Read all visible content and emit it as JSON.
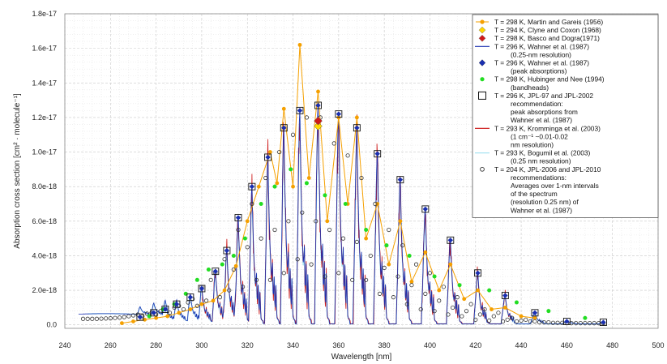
{
  "chart_data": {
    "type": "line",
    "xlabel": "Wavelength [nm]",
    "ylabel": "Absorption cross section [cm² · molecule⁻¹]",
    "xlim": [
      240,
      500
    ],
    "ylim": [
      -2e-19,
      1.8e-17
    ],
    "x_ticks": [
      "240",
      "260",
      "280",
      "300",
      "320",
      "340",
      "360",
      "380",
      "400",
      "420",
      "440",
      "460",
      "480",
      "500"
    ],
    "y_ticks": [
      "0.0",
      "2.0e-18",
      "4.0e-18",
      "6.0e-18",
      "8.0e-18",
      "1.0e-17",
      "1.2e-17",
      "1.4e-17",
      "1.6e-17",
      "1.8e-17"
    ],
    "grid": true,
    "legend_position": "top-right",
    "legend": [
      {
        "lines": [
          "T = 298 K, Martin and Gareis (1956)"
        ],
        "color": "#f5a000",
        "marker": "circle-line"
      },
      {
        "lines": [
          "T = 294 K, Clyne and Coxon (1968)"
        ],
        "color": "#ffd700",
        "marker": "diamond"
      },
      {
        "lines": [
          "T = 298 K, Basco and Dogra(1971)"
        ],
        "color": "#d01818",
        "marker": "diamond"
      },
      {
        "lines": [
          "T = 296 K, Wahner et al. (1987)",
          "(0.25-nm resolution)"
        ],
        "color": "#1a2fb0",
        "marker": "line"
      },
      {
        "lines": [
          "T = 296 K, Wahner et al. (1987)",
          "(peak absorptions)"
        ],
        "color": "#1a2fb0",
        "marker": "diamond"
      },
      {
        "lines": [
          "T = 298 K, Hubinger and Nee (1994)",
          "(bandheads)"
        ],
        "color": "#22dd22",
        "marker": "circle"
      },
      {
        "lines": [
          "T = 296 K, JPL-97 and JPL-2002",
          "recommendation:",
          "peak absorptions from",
          "Wahner et al. (1987)"
        ],
        "color": "#111111",
        "marker": "square"
      },
      {
        "lines": [
          "T = 293 K, Kromminga et al. (2003)",
          "(1 cm⁻¹ ~0.01-0.02",
          "nm resolution)"
        ],
        "color": "#cc1111",
        "marker": "line"
      },
      {
        "lines": [
          "T = 293 K, Bogumil et al. (2003)",
          "(0.25 nm resolution)"
        ],
        "color": "#a8e4f2",
        "marker": "line"
      },
      {
        "lines": [
          "T = 204 K, JPL-2006 and JPL-2010",
          "recommendations:",
          "Averages over 1-nm intervals",
          "of the spectrum",
          "(resolution 0.25 nm) of",
          "Wahner et al. (1987)"
        ],
        "color": "#333333",
        "marker": "open-circle"
      }
    ],
    "peak_wavelengths": [
      273,
      279,
      284,
      289,
      295,
      300,
      306,
      311,
      316,
      322,
      329,
      336,
      343,
      351,
      360,
      368,
      377,
      387,
      398,
      409,
      421,
      433,
      446,
      460,
      476
    ],
    "peak_values": [
      4.5e-19,
      7e-19,
      9e-19,
      1.2e-18,
      1.6e-18,
      2.1e-18,
      3.1e-18,
      4.3e-18,
      6.2e-18,
      8e-18,
      9.7e-18,
      1.14e-17,
      1.24e-17,
      1.27e-17,
      1.22e-17,
      1.14e-17,
      9.9e-18,
      8.4e-18,
      6.7e-18,
      4.9e-18,
      3e-18,
      1.7e-18,
      7e-19,
      2e-19,
      1.5e-19
    ],
    "series": [
      {
        "name": "Martin and Gareis (1956)",
        "x": [
          265,
          270,
          275,
          280,
          285,
          290,
          295,
          300,
          305,
          310,
          315,
          320,
          325,
          330,
          333,
          336,
          340,
          343,
          347,
          351,
          355,
          360,
          364,
          368,
          372,
          377,
          382,
          387,
          392,
          398,
          404,
          409,
          415,
          421,
          427,
          433,
          440,
          446
        ],
        "y": [
          1e-19,
          2e-19,
          3e-19,
          4e-19,
          5e-19,
          7e-19,
          9e-19,
          1.2e-18,
          1.4e-18,
          2e-18,
          3.4e-18,
          6e-18,
          8e-18,
          1e-17,
          8.2e-18,
          1.25e-17,
          8e-18,
          1.62e-17,
          8.5e-18,
          1.35e-17,
          6e-18,
          1.2e-17,
          7e-18,
          1.2e-17,
          5e-18,
          7e-18,
          3.5e-18,
          6e-18,
          2.5e-18,
          4.2e-18,
          2e-18,
          3.5e-18,
          1.5e-18,
          2e-18,
          9e-19,
          1e-18,
          5e-19,
          4e-19
        ]
      },
      {
        "name": "Clyne and Coxon (1968)",
        "x": [
          351
        ],
        "y": [
          1.15e-17
        ]
      },
      {
        "name": "Basco and Dogra(1971)",
        "x": [
          351
        ],
        "y": [
          1.18e-17
        ]
      },
      {
        "name": "Hubinger and Nee (1994)",
        "x": [
          277,
          283,
          288,
          293,
          298,
          303,
          309,
          314,
          319,
          326,
          332,
          339,
          346,
          354,
          363,
          372,
          381,
          391,
          402,
          413,
          426,
          438,
          452,
          468
        ],
        "y": [
          5e-19,
          9e-19,
          1.2e-18,
          1.8e-18,
          2.6e-18,
          3.2e-18,
          3.5e-18,
          4e-18,
          5e-18,
          7e-18,
          8e-18,
          9e-18,
          8.2e-18,
          7.5e-18,
          7e-18,
          5.5e-18,
          4.6e-18,
          4e-18,
          2.8e-18,
          2.3e-18,
          2e-18,
          1.3e-18,
          8e-19,
          4e-19
        ]
      },
      {
        "name": "JPL-2006 and JPL-2010 (1-nm averages)",
        "x": [
          248,
          250,
          252,
          254,
          256,
          258,
          260,
          262,
          264,
          266,
          268,
          270,
          272,
          274,
          276,
          278,
          280,
          282,
          284,
          286,
          288,
          290,
          292,
          294,
          296,
          298,
          300,
          302,
          304,
          306,
          308,
          310,
          312,
          314,
          316,
          318,
          320,
          322,
          324,
          326,
          328,
          330,
          332,
          334,
          336,
          338,
          340,
          342,
          344,
          346,
          348,
          350,
          352,
          354,
          356,
          358,
          360,
          362,
          364,
          366,
          368,
          370,
          372,
          374,
          376,
          378,
          380,
          382,
          384,
          386,
          388,
          390,
          392,
          394,
          396,
          398,
          400,
          402,
          404,
          406,
          408,
          410,
          412,
          414,
          416,
          418,
          420,
          422,
          424,
          426,
          428,
          430,
          432,
          434,
          436,
          438,
          440,
          442,
          444,
          446,
          448,
          450,
          452,
          454,
          456,
          458,
          460,
          462,
          464,
          466,
          468,
          470,
          472,
          474,
          476
        ],
        "y": [
          3.5e-19,
          3.5e-19,
          3.5e-19,
          3.5e-19,
          3.6e-19,
          3.7e-19,
          3.8e-19,
          4e-19,
          4.2e-19,
          4.5e-19,
          5e-19,
          5.5e-19,
          6e-19,
          5e-19,
          6.5e-19,
          7e-19,
          6e-19,
          8e-19,
          9e-19,
          7e-19,
          1e-18,
          1.1e-18,
          9e-19,
          1.3e-18,
          1.5e-18,
          1.1e-18,
          2.2e-18,
          1.4e-18,
          2.6e-18,
          3e-18,
          1.6e-18,
          3.8e-18,
          2e-18,
          3.2e-18,
          5.5e-18,
          2.2e-18,
          4.5e-18,
          7e-18,
          2.6e-18,
          5e-18,
          8.5e-18,
          2.6e-18,
          5.5e-18,
          1e-17,
          3e-18,
          6e-18,
          1.1e-17,
          3.8e-18,
          6.5e-18,
          1.2e-17,
          3.5e-18,
          6e-18,
          1.2e-17,
          2.8e-18,
          5.5e-18,
          1.05e-17,
          3e-18,
          5e-18,
          9.8e-18,
          2.6e-18,
          4.8e-18,
          8.5e-18,
          2.6e-18,
          4e-18,
          7e-18,
          1.8e-18,
          3.3e-18,
          5.5e-18,
          1.6e-18,
          2.8e-18,
          4.6e-18,
          1.2e-18,
          2.3e-18,
          3.5e-18,
          9e-19,
          1.8e-18,
          3e-18,
          8e-19,
          1.4e-18,
          2.2e-18,
          6e-19,
          1e-18,
          1.6e-18,
          5e-19,
          8e-19,
          1.2e-18,
          3e-19,
          6e-19,
          9e-19,
          2.5e-19,
          5e-19,
          7e-19,
          2e-19,
          3e-19,
          4e-19,
          2e-19,
          2.5e-19,
          3e-19,
          2e-19,
          2e-19,
          1.5e-19,
          1.5e-19,
          1.5e-19,
          1.2e-19,
          1.2e-19,
          1.2e-19,
          1e-19,
          1e-19,
          1e-19,
          1e-19,
          1e-19,
          1e-19,
          1e-19,
          1e-19,
          1e-19
        ]
      }
    ]
  }
}
